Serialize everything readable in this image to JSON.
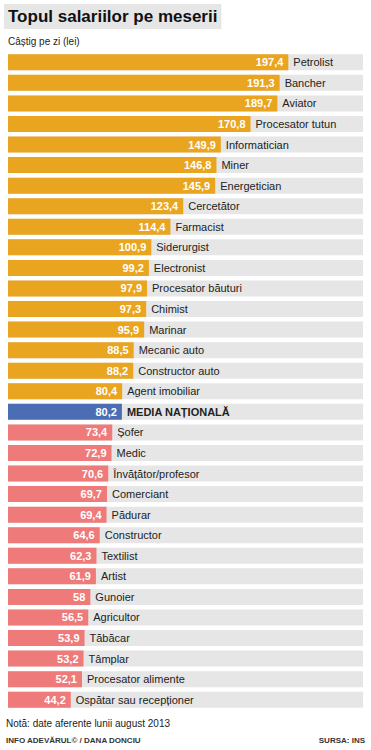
{
  "chart_data": {
    "type": "bar",
    "orientation": "horizontal",
    "title": "Topul salariilor pe meserii",
    "subtitle": "Câștig pe zi (lei)",
    "categories": [
      "Petrolist",
      "Bancher",
      "Aviator",
      "Procesator tutun",
      "Informatician",
      "Miner",
      "Energetician",
      "Cercetător",
      "Farmacist",
      "Siderurgist",
      "Electronist",
      "Procesator băuturi",
      "Chimist",
      "Marinar",
      "Mecanic auto",
      "Constructor auto",
      "Agent imobiliar",
      "MEDIA NAȚIONALĂ",
      "Șofer",
      "Medic",
      "Învățător/profesor",
      "Comerciant",
      "Pădurar",
      "Constructor",
      "Textilist",
      "Artist",
      "Gunoier",
      "Agricultor",
      "Tăbăcar",
      "Tâmplar",
      "Procesator alimente",
      "Ospătar sau recepționer"
    ],
    "values": [
      197.4,
      191.3,
      189.7,
      170.8,
      149.9,
      146.8,
      145.9,
      123.4,
      114.4,
      100.9,
      99.2,
      97.9,
      97.3,
      95.9,
      88.5,
      88.2,
      80.4,
      80.2,
      73.4,
      72.9,
      70.6,
      69.7,
      69.4,
      64.6,
      62.3,
      61.9,
      58,
      56.5,
      53.9,
      53.2,
      52.1,
      44.2
    ],
    "value_labels": [
      "197,4",
      "191,3",
      "189,7",
      "170,8",
      "149,9",
      "146,8",
      "145,9",
      "123,4",
      "114,4",
      "100,9",
      "99,2",
      "97,9",
      "97,3",
      "95,9",
      "88,5",
      "88,2",
      "80,4",
      "80,2",
      "73,4",
      "72,9",
      "70,6",
      "69,7",
      "69,4",
      "64,6",
      "62,3",
      "61,9",
      "58",
      "56,5",
      "53,9",
      "53,2",
      "52,1",
      "44,2"
    ],
    "colors": [
      "#e9a51f",
      "#e9a51f",
      "#e9a51f",
      "#e9a51f",
      "#e9a51f",
      "#e9a51f",
      "#e9a51f",
      "#e9a51f",
      "#e9a51f",
      "#e9a51f",
      "#e9a51f",
      "#e9a51f",
      "#e9a51f",
      "#e9a51f",
      "#e9a51f",
      "#e9a51f",
      "#e9a51f",
      "#4a6db3",
      "#ef7a7a",
      "#ef7a7a",
      "#ef7a7a",
      "#ef7a7a",
      "#ef7a7a",
      "#ef7a7a",
      "#ef7a7a",
      "#ef7a7a",
      "#ef7a7a",
      "#ef7a7a",
      "#ef7a7a",
      "#ef7a7a",
      "#ef7a7a",
      "#ef7a7a"
    ],
    "xlim": [
      0,
      250
    ],
    "grid": false,
    "data_labels": true,
    "tick_labels": false,
    "annotations": [
      "Notă: date aferente lunii august 2013",
      "INFO ADEVĂRUL© / DANA DONCIU",
      "SURSA: INS"
    ]
  }
}
